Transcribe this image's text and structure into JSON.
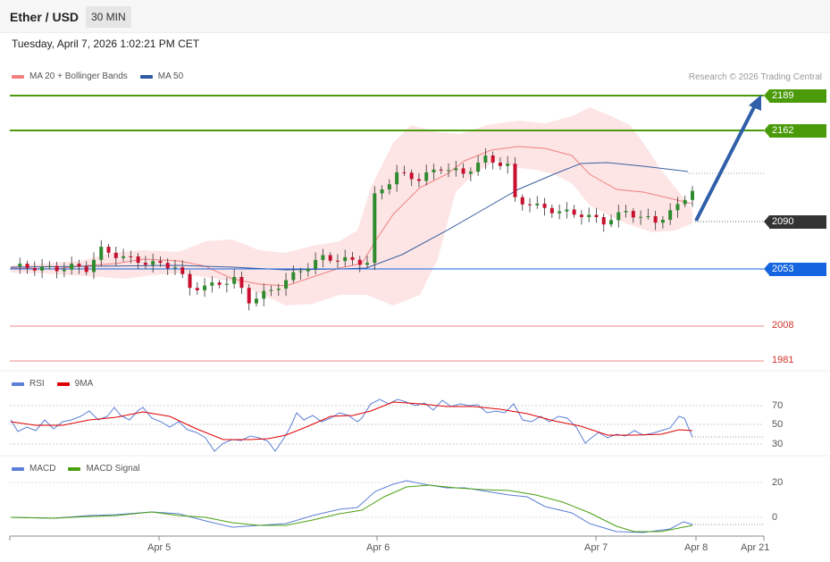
{
  "header": {
    "pair": "Ether / USD",
    "timeframe": "30 MIN"
  },
  "datetime": "Tuesday, April 7, 2026 1:02:21 PM CET",
  "legend": {
    "main": [
      {
        "label": "MA 20 + Bollinger Bands",
        "color": "#f08080"
      },
      {
        "label": "MA 50",
        "color": "#2c5aa0"
      }
    ],
    "rsi": [
      {
        "label": "RSI",
        "color": "#5b7fd6"
      },
      {
        "label": "9MA",
        "color": "#e00000"
      }
    ],
    "macd": [
      {
        "label": "MACD",
        "color": "#5b7fd6"
      },
      {
        "label": "MACD Signal",
        "color": "#4aa010"
      }
    ]
  },
  "copyright": "Research © 2026 Trading Central",
  "levels": {
    "r2": "2189",
    "r1": "2162",
    "current": "2090",
    "pivot": "2053",
    "s1": "2008",
    "s2": "1981"
  },
  "rsi_ticks": [
    "70",
    "50",
    "30"
  ],
  "macd_ticks": [
    "20",
    "0"
  ],
  "x_ticks": [
    "Apr 5",
    "Apr 6",
    "Apr 7",
    "Apr 8",
    "Apr 21"
  ],
  "colors": {
    "up": "#2e8b2e",
    "down": "#c8102e",
    "resistance": "#4a9a0a",
    "pivot": "#1565e0",
    "support": "#d0352b",
    "arrow": "#2f5fa8"
  },
  "chart_data": {
    "type": "candlestick",
    "instrument": "Ether / USD",
    "timeframe": "30 MIN",
    "levels": [
      2189,
      2162,
      2090,
      2053,
      2008,
      1981
    ],
    "price_points": [
      [
        0,
        2055
      ],
      [
        6,
        2053
      ],
      [
        8,
        2055
      ],
      [
        10,
        2053
      ],
      [
        12,
        2068
      ],
      [
        15,
        2062
      ],
      [
        18,
        2058
      ],
      [
        22,
        2055
      ],
      [
        24,
        2038
      ],
      [
        27,
        2040
      ],
      [
        30,
        2045
      ],
      [
        32,
        2028
      ],
      [
        35,
        2036
      ],
      [
        39,
        2052
      ],
      [
        42,
        2062
      ],
      [
        45,
        2060
      ],
      [
        48,
        2058
      ],
      [
        49,
        2110
      ],
      [
        52,
        2128
      ],
      [
        55,
        2124
      ],
      [
        58,
        2133
      ],
      [
        61,
        2128
      ],
      [
        64,
        2140
      ],
      [
        67,
        2134
      ],
      [
        68,
        2108
      ],
      [
        71,
        2102
      ],
      [
        74,
        2098
      ],
      [
        77,
        2096
      ],
      [
        80,
        2090
      ],
      [
        83,
        2098
      ],
      [
        87,
        2090
      ],
      [
        90,
        2102
      ],
      [
        92,
        2116
      ]
    ],
    "rsi": {
      "ticks": [
        70,
        50,
        30
      ]
    },
    "macd": {
      "ticks": [
        20,
        0
      ]
    }
  }
}
